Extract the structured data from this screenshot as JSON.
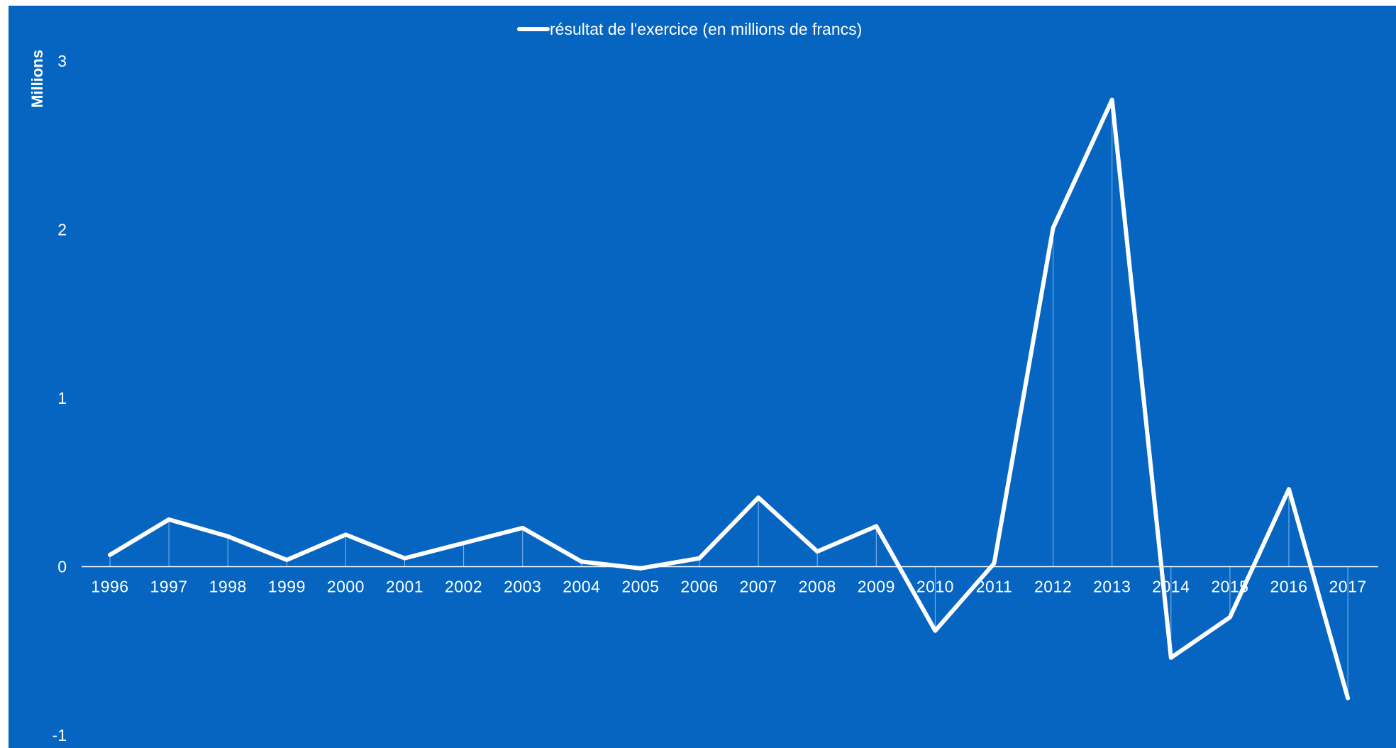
{
  "colors": {
    "background": "#0565c1",
    "line": "#ffffff",
    "axis": "#ffffff"
  },
  "chart_data": {
    "type": "line",
    "legend": {
      "label": "résultat de l'exercice (en millions de francs)",
      "position": "top-center"
    },
    "ylabel": "Millions",
    "xlabel": "",
    "ylim": [
      -1,
      3
    ],
    "yticks": [
      3,
      2,
      1,
      0,
      -1
    ],
    "grid": false,
    "categories": [
      "1996",
      "1997",
      "1998",
      "1999",
      "2000",
      "2001",
      "2002",
      "2003",
      "2004",
      "2005",
      "2006",
      "2007",
      "2008",
      "2009",
      "2010",
      "2011",
      "2012",
      "2013",
      "2014",
      "2015",
      "2016",
      "2017"
    ],
    "series": [
      {
        "name": "résultat de l'exercice (en millions de francs)",
        "values": [
          0.07,
          0.28,
          0.18,
          0.04,
          0.19,
          0.05,
          0.14,
          0.23,
          0.03,
          -0.01,
          0.05,
          0.41,
          0.09,
          0.24,
          -0.38,
          0.02,
          2.01,
          2.77,
          -0.54,
          -0.3,
          0.46,
          -0.78
        ]
      }
    ]
  }
}
